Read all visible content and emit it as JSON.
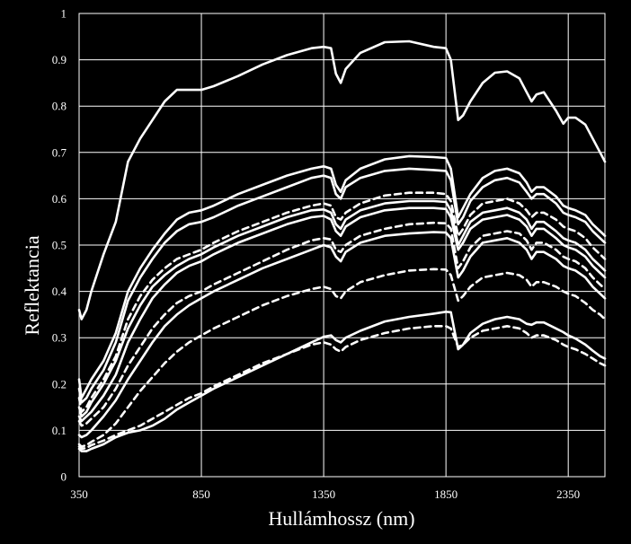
{
  "chart_data": {
    "type": "line",
    "title": "",
    "xlabel": "Hullámhossz (nm)",
    "ylabel": "Reflektancia",
    "xlim": [
      350,
      2500
    ],
    "ylim": [
      0,
      1
    ],
    "x_ticks": [
      "350",
      "850",
      "1350",
      "1850",
      "2350"
    ],
    "y_ticks": [
      "0",
      "0.1",
      "0.2",
      "0.3",
      "0.4",
      "0.5",
      "0.6",
      "0.7",
      "0.8",
      "0.9",
      "1"
    ],
    "grid": true,
    "legend": "none",
    "line_color": "#ffffff",
    "background_color": "#000000",
    "x": [
      350,
      360,
      380,
      400,
      450,
      500,
      550,
      600,
      650,
      700,
      750,
      800,
      850,
      900,
      1000,
      1100,
      1200,
      1300,
      1350,
      1380,
      1400,
      1420,
      1440,
      1500,
      1600,
      1700,
      1800,
      1850,
      1870,
      1900,
      1920,
      1950,
      2000,
      2050,
      2100,
      2150,
      2180,
      2200,
      2220,
      2250,
      2300,
      2330,
      2350,
      2380,
      2420,
      2450,
      2480,
      2500
    ],
    "series": [
      {
        "style": "solid",
        "values": [
          0.36,
          0.34,
          0.36,
          0.4,
          0.48,
          0.55,
          0.68,
          0.73,
          0.77,
          0.81,
          0.835,
          0.835,
          0.835,
          0.843,
          0.865,
          0.89,
          0.91,
          0.925,
          0.928,
          0.925,
          0.87,
          0.85,
          0.88,
          0.915,
          0.938,
          0.94,
          0.928,
          0.925,
          0.9,
          0.77,
          0.78,
          0.81,
          0.85,
          0.872,
          0.875,
          0.86,
          0.83,
          0.81,
          0.825,
          0.83,
          0.79,
          0.762,
          0.775,
          0.775,
          0.76,
          0.73,
          0.7,
          0.68
        ]
      },
      {
        "style": "solid",
        "values": [
          0.21,
          0.17,
          0.19,
          0.21,
          0.25,
          0.31,
          0.4,
          0.45,
          0.49,
          0.525,
          0.555,
          0.57,
          0.575,
          0.585,
          0.61,
          0.63,
          0.65,
          0.665,
          0.67,
          0.665,
          0.63,
          0.615,
          0.64,
          0.665,
          0.685,
          0.692,
          0.69,
          0.688,
          0.665,
          0.56,
          0.58,
          0.61,
          0.645,
          0.66,
          0.665,
          0.655,
          0.635,
          0.615,
          0.625,
          0.625,
          0.605,
          0.585,
          0.58,
          0.575,
          0.565,
          0.545,
          0.53,
          0.52
        ]
      },
      {
        "style": "solid",
        "values": [
          0.19,
          0.16,
          0.17,
          0.19,
          0.23,
          0.29,
          0.38,
          0.43,
          0.47,
          0.505,
          0.53,
          0.545,
          0.55,
          0.56,
          0.585,
          0.605,
          0.625,
          0.645,
          0.65,
          0.645,
          0.61,
          0.6,
          0.625,
          0.645,
          0.66,
          0.665,
          0.662,
          0.66,
          0.64,
          0.545,
          0.56,
          0.595,
          0.625,
          0.64,
          0.645,
          0.635,
          0.615,
          0.6,
          0.61,
          0.61,
          0.59,
          0.57,
          0.565,
          0.56,
          0.55,
          0.53,
          0.515,
          0.505
        ]
      },
      {
        "style": "dashed",
        "values": [
          0.17,
          0.14,
          0.15,
          0.17,
          0.21,
          0.26,
          0.34,
          0.39,
          0.425,
          0.45,
          0.47,
          0.48,
          0.49,
          0.505,
          0.53,
          0.55,
          0.57,
          0.585,
          0.59,
          0.585,
          0.56,
          0.555,
          0.57,
          0.59,
          0.607,
          0.613,
          0.613,
          0.61,
          0.595,
          0.52,
          0.535,
          0.565,
          0.59,
          0.595,
          0.6,
          0.59,
          0.575,
          0.56,
          0.57,
          0.57,
          0.555,
          0.54,
          0.535,
          0.53,
          0.515,
          0.495,
          0.48,
          0.47
        ]
      },
      {
        "style": "solid",
        "values": [
          0.15,
          0.13,
          0.14,
          0.16,
          0.2,
          0.25,
          0.32,
          0.37,
          0.41,
          0.435,
          0.455,
          0.47,
          0.48,
          0.495,
          0.52,
          0.54,
          0.56,
          0.575,
          0.577,
          0.57,
          0.545,
          0.535,
          0.555,
          0.575,
          0.59,
          0.595,
          0.595,
          0.593,
          0.575,
          0.5,
          0.52,
          0.55,
          0.57,
          0.575,
          0.58,
          0.57,
          0.555,
          0.535,
          0.55,
          0.55,
          0.53,
          0.515,
          0.51,
          0.505,
          0.49,
          0.47,
          0.455,
          0.445
        ]
      },
      {
        "style": "solid",
        "values": [
          0.13,
          0.12,
          0.13,
          0.14,
          0.175,
          0.22,
          0.29,
          0.34,
          0.385,
          0.415,
          0.44,
          0.455,
          0.465,
          0.48,
          0.505,
          0.525,
          0.545,
          0.56,
          0.563,
          0.555,
          0.53,
          0.52,
          0.54,
          0.56,
          0.575,
          0.58,
          0.58,
          0.578,
          0.56,
          0.49,
          0.505,
          0.535,
          0.555,
          0.56,
          0.565,
          0.555,
          0.54,
          0.52,
          0.535,
          0.535,
          0.515,
          0.5,
          0.495,
          0.49,
          0.475,
          0.455,
          0.44,
          0.43
        ]
      },
      {
        "style": "dashed",
        "values": [
          0.12,
          0.11,
          0.115,
          0.125,
          0.15,
          0.19,
          0.24,
          0.28,
          0.32,
          0.35,
          0.375,
          0.39,
          0.4,
          0.415,
          0.44,
          0.465,
          0.49,
          0.51,
          0.515,
          0.512,
          0.49,
          0.485,
          0.5,
          0.52,
          0.535,
          0.545,
          0.548,
          0.547,
          0.535,
          0.45,
          0.465,
          0.495,
          0.52,
          0.525,
          0.53,
          0.525,
          0.51,
          0.49,
          0.505,
          0.505,
          0.49,
          0.475,
          0.47,
          0.465,
          0.45,
          0.43,
          0.415,
          0.405
        ]
      },
      {
        "style": "solid",
        "values": [
          0.09,
          0.085,
          0.09,
          0.1,
          0.13,
          0.165,
          0.21,
          0.25,
          0.29,
          0.325,
          0.35,
          0.37,
          0.385,
          0.4,
          0.425,
          0.45,
          0.47,
          0.49,
          0.5,
          0.495,
          0.475,
          0.465,
          0.485,
          0.505,
          0.52,
          0.525,
          0.528,
          0.527,
          0.515,
          0.43,
          0.445,
          0.475,
          0.505,
          0.51,
          0.515,
          0.505,
          0.49,
          0.47,
          0.485,
          0.485,
          0.47,
          0.455,
          0.45,
          0.445,
          0.43,
          0.41,
          0.395,
          0.385
        ]
      },
      {
        "style": "dashed",
        "values": [
          0.07,
          0.065,
          0.068,
          0.075,
          0.09,
          0.115,
          0.15,
          0.185,
          0.215,
          0.245,
          0.27,
          0.29,
          0.305,
          0.32,
          0.345,
          0.37,
          0.39,
          0.405,
          0.41,
          0.405,
          0.39,
          0.385,
          0.4,
          0.42,
          0.435,
          0.445,
          0.448,
          0.447,
          0.435,
          0.38,
          0.39,
          0.41,
          0.43,
          0.435,
          0.44,
          0.435,
          0.425,
          0.41,
          0.42,
          0.42,
          0.41,
          0.4,
          0.395,
          0.39,
          0.375,
          0.36,
          0.35,
          0.34
        ]
      },
      {
        "style": "dashed",
        "values": [
          0.065,
          0.06,
          0.062,
          0.068,
          0.078,
          0.09,
          0.1,
          0.11,
          0.125,
          0.14,
          0.155,
          0.17,
          0.18,
          0.195,
          0.22,
          0.245,
          0.265,
          0.285,
          0.29,
          0.285,
          0.275,
          0.27,
          0.28,
          0.295,
          0.31,
          0.32,
          0.325,
          0.325,
          0.32,
          0.28,
          0.285,
          0.3,
          0.315,
          0.32,
          0.325,
          0.32,
          0.31,
          0.3,
          0.305,
          0.305,
          0.295,
          0.285,
          0.28,
          0.275,
          0.265,
          0.255,
          0.245,
          0.24
        ]
      },
      {
        "style": "solid",
        "values": [
          0.06,
          0.055,
          0.055,
          0.06,
          0.07,
          0.085,
          0.095,
          0.1,
          0.11,
          0.125,
          0.145,
          0.16,
          0.175,
          0.19,
          0.215,
          0.24,
          0.265,
          0.29,
          0.302,
          0.305,
          0.295,
          0.29,
          0.3,
          0.315,
          0.335,
          0.345,
          0.352,
          0.356,
          0.355,
          0.275,
          0.285,
          0.31,
          0.33,
          0.34,
          0.345,
          0.34,
          0.33,
          0.328,
          0.333,
          0.333,
          0.32,
          0.312,
          0.305,
          0.298,
          0.285,
          0.272,
          0.26,
          0.255
        ]
      }
    ]
  }
}
